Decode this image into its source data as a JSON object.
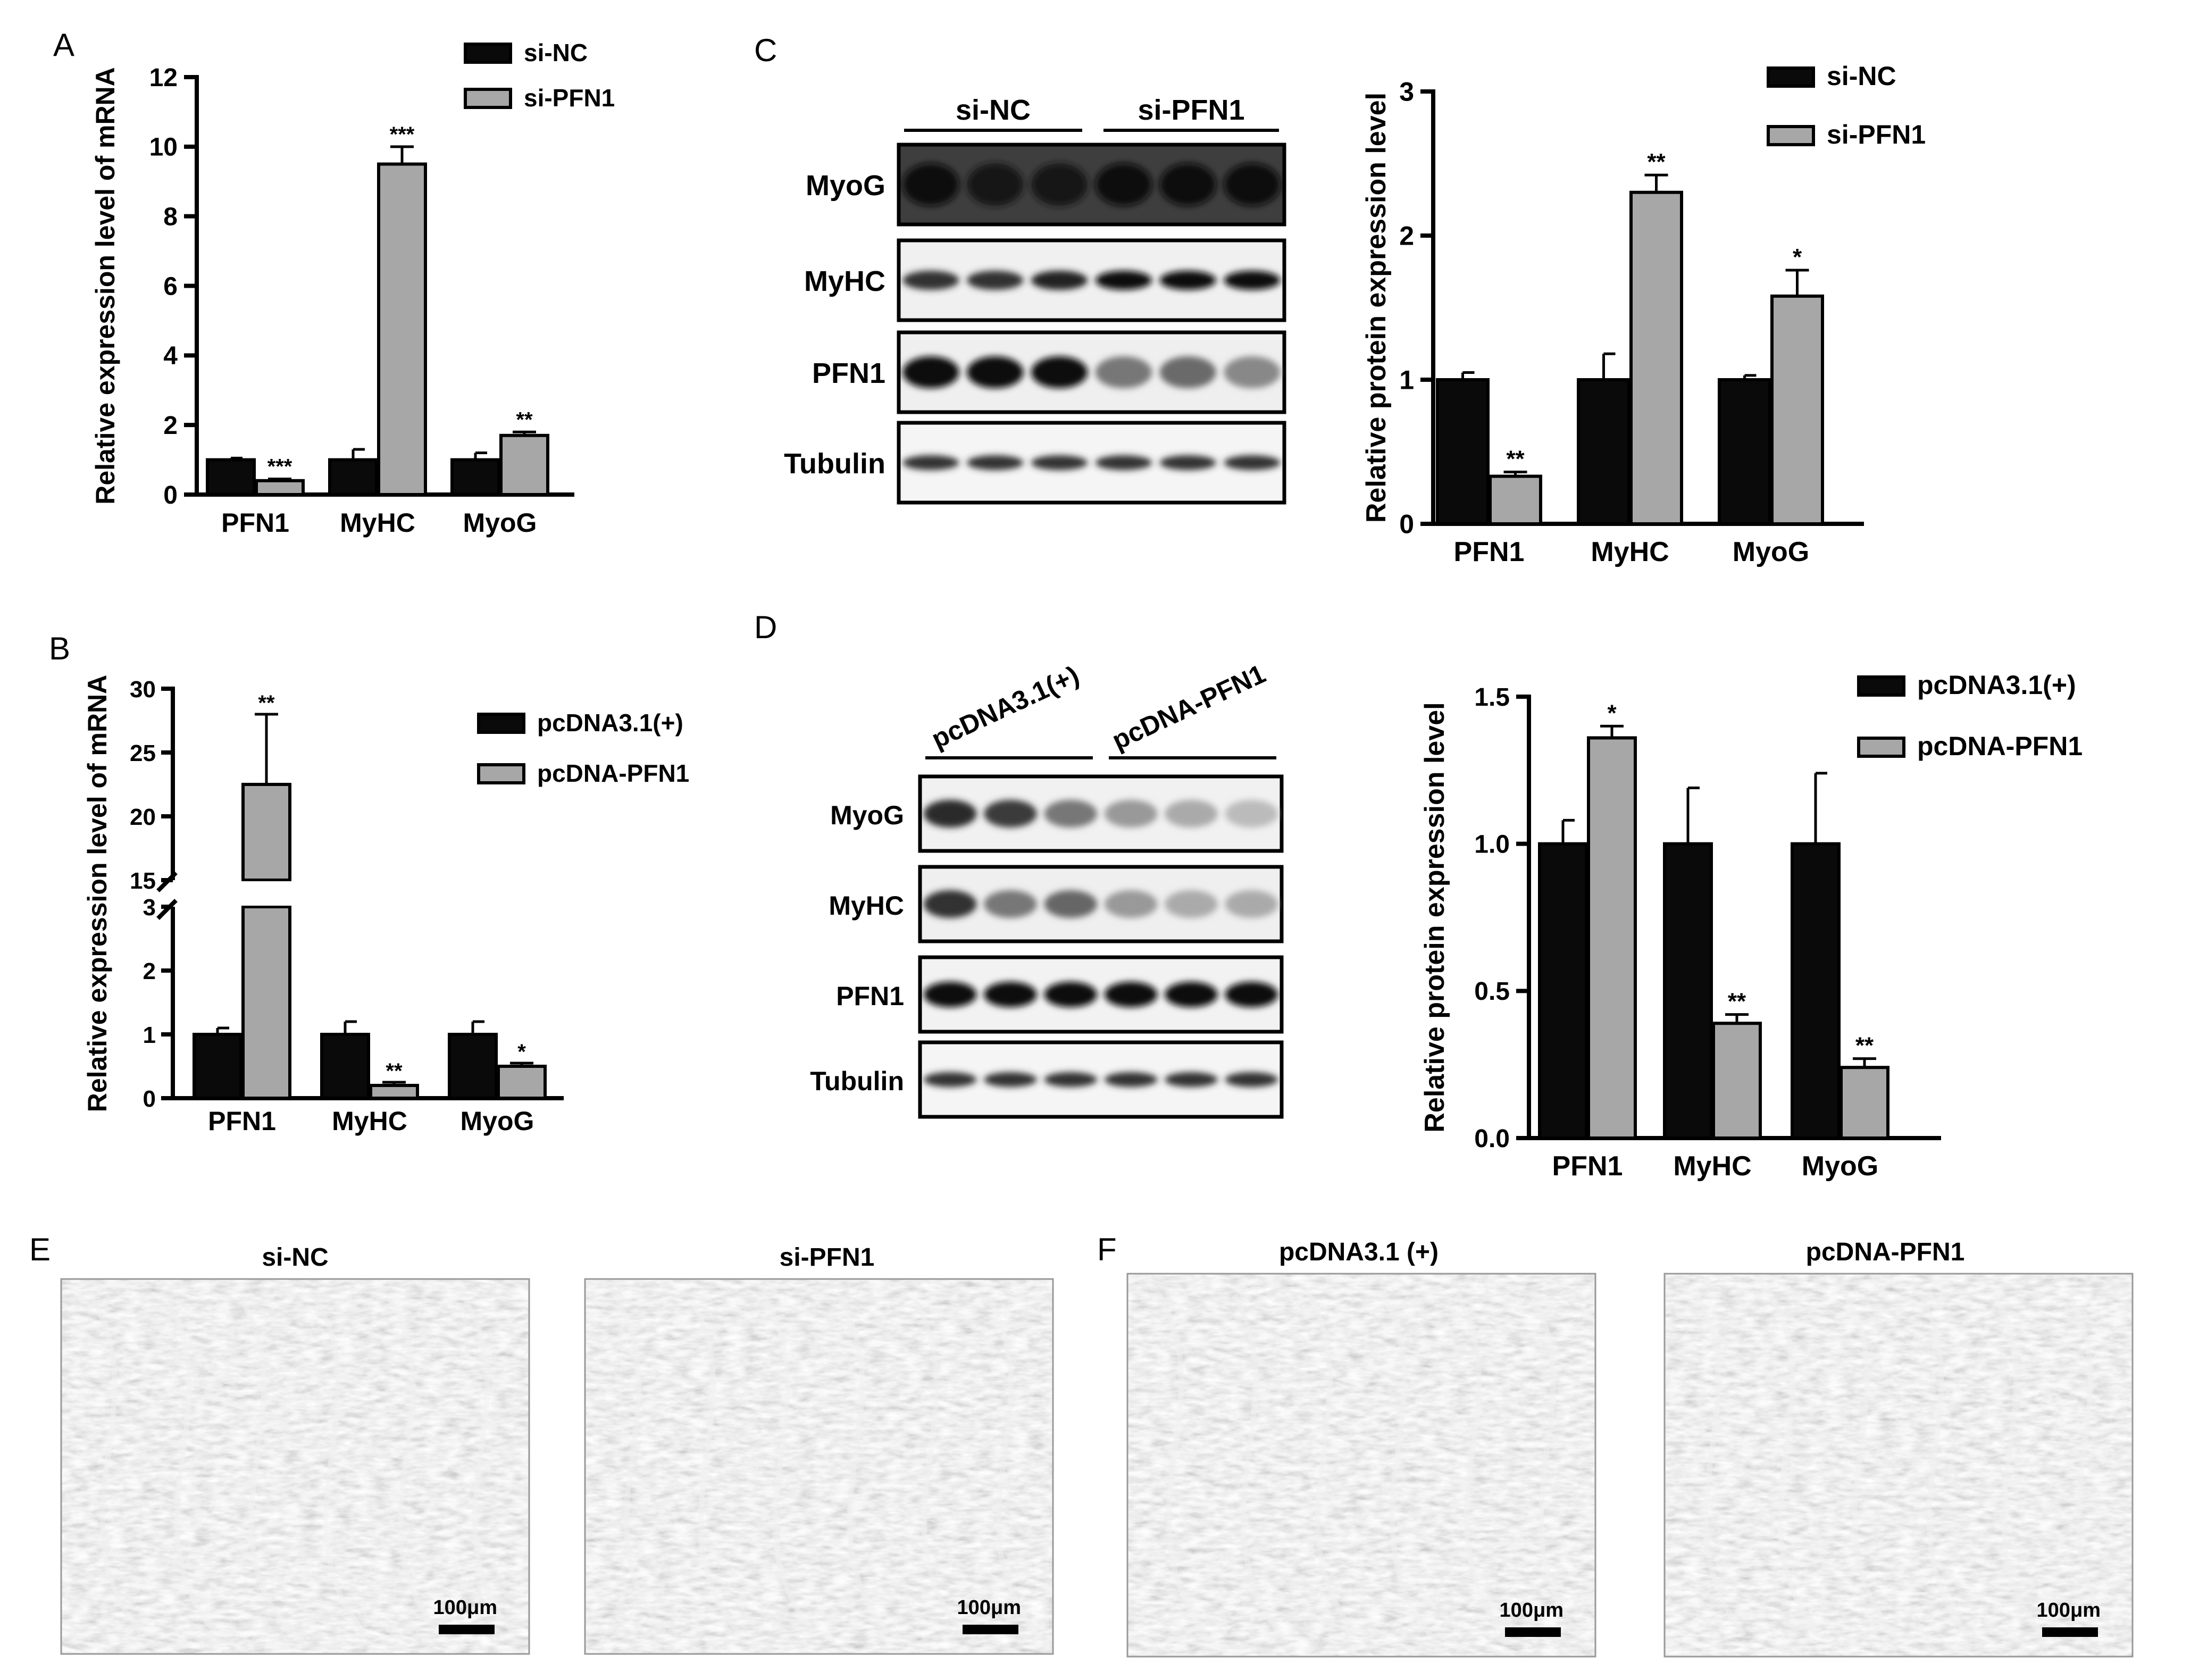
{
  "colors": {
    "black_series": "#0a0a0a",
    "gray_series": "#a7a7a7",
    "axis": "#000000"
  },
  "panels": {
    "A": {
      "letter": "A"
    },
    "B": {
      "letter": "B"
    },
    "C": {
      "letter": "C"
    },
    "D": {
      "letter": "D"
    },
    "E": {
      "letter": "E"
    },
    "F": {
      "letter": "F"
    }
  },
  "chart_data": [
    {
      "id": "A",
      "type": "bar",
      "ylabel": "Relative expression level of mRNA",
      "categories": [
        "PFN1",
        "MyHC",
        "MyoG"
      ],
      "yticks": [
        "0",
        "2",
        "4",
        "6",
        "8",
        "10",
        "12"
      ],
      "ylim": [
        0,
        12
      ],
      "legend_position": "top-right",
      "series": [
        {
          "name": "si-NC",
          "values": [
            1.0,
            1.0,
            1.0
          ],
          "errors": [
            0.05,
            0.3,
            0.2
          ]
        },
        {
          "name": "si-PFN1",
          "values": [
            0.4,
            9.5,
            1.7
          ],
          "errors": [
            0.05,
            0.5,
            0.1
          ]
        }
      ],
      "significance": [
        "***",
        "***",
        "**"
      ]
    },
    {
      "id": "B",
      "type": "bar",
      "ylabel": "Relative expression level of mRNA",
      "categories": [
        "PFN1",
        "MyHC",
        "MyoG"
      ],
      "axis_break": {
        "lower": [
          0,
          3
        ],
        "upper": [
          15,
          30
        ]
      },
      "yticks_lower": [
        "0",
        "1",
        "2",
        "3"
      ],
      "yticks_upper": [
        "15",
        "20",
        "25",
        "30"
      ],
      "legend_position": "top-right",
      "series": [
        {
          "name": "pcDNA3.1(+)",
          "values": [
            1.0,
            1.0,
            1.0
          ],
          "errors": [
            0.1,
            0.2,
            0.2
          ]
        },
        {
          "name": "pcDNA-PFN1",
          "values": [
            22.5,
            0.2,
            0.5
          ],
          "errors": [
            5.5,
            0.05,
            0.05
          ]
        }
      ],
      "significance": [
        "**",
        "**",
        "*"
      ]
    },
    {
      "id": "C",
      "type": "bar",
      "ylabel": "Relative protein expression level",
      "categories": [
        "PFN1",
        "MyHC",
        "MyoG"
      ],
      "yticks": [
        "0",
        "1",
        "2",
        "3"
      ],
      "ylim": [
        0,
        3
      ],
      "legend_position": "top-right",
      "series": [
        {
          "name": "si-NC",
          "values": [
            1.0,
            1.0,
            1.0
          ],
          "errors": [
            0.05,
            0.18,
            0.03
          ]
        },
        {
          "name": "si-PFN1",
          "values": [
            0.33,
            2.3,
            1.58
          ],
          "errors": [
            0.03,
            0.12,
            0.18
          ]
        }
      ],
      "significance": [
        "**",
        "**",
        "*"
      ]
    },
    {
      "id": "D",
      "type": "bar",
      "ylabel": "Relative protein expression level",
      "categories": [
        "PFN1",
        "MyHC",
        "MyoG"
      ],
      "yticks": [
        "0.0",
        "0.5",
        "1.0",
        "1.5"
      ],
      "ylim": [
        0,
        1.5
      ],
      "legend_position": "top-right",
      "series": [
        {
          "name": "pcDNA3.1(+)",
          "values": [
            1.0,
            1.0,
            1.0
          ],
          "errors": [
            0.08,
            0.19,
            0.24
          ]
        },
        {
          "name": "pcDNA-PFN1",
          "values": [
            1.36,
            0.39,
            0.24
          ],
          "errors": [
            0.04,
            0.03,
            0.03
          ]
        }
      ],
      "significance": [
        "*",
        "**",
        "**"
      ]
    }
  ],
  "blots": {
    "C": {
      "groups": [
        "si-NC",
        "si-PFN1"
      ],
      "rows": [
        "MyoG",
        "MyHC",
        "PFN1",
        "Tubulin"
      ]
    },
    "D": {
      "groups": [
        "pcDNA3.1(+)",
        "pcDNA-PFN1"
      ],
      "rows": [
        "MyoG",
        "MyHC",
        "PFN1",
        "Tubulin"
      ]
    }
  },
  "micrographs": [
    {
      "title": "si-NC",
      "scale": "100μm"
    },
    {
      "title": "si-PFN1",
      "scale": "100μm"
    },
    {
      "title": "pcDNA3.1  (+)",
      "scale": "100μm"
    },
    {
      "title": "pcDNA-PFN1",
      "scale": "100μm"
    }
  ]
}
